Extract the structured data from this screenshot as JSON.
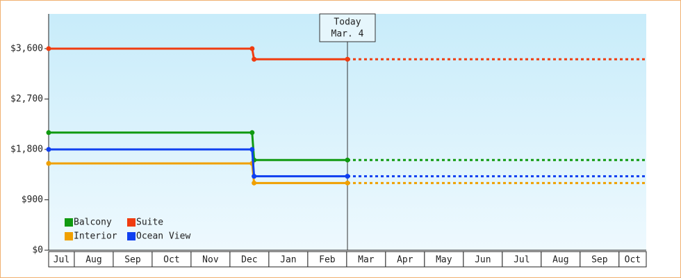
{
  "chart_data": {
    "type": "step-line",
    "categories": [
      "Jul",
      "Aug",
      "Sep",
      "Oct",
      "Nov",
      "Dec",
      "Jan",
      "Feb",
      "Mar",
      "Apr",
      "May",
      "Jun",
      "Jul",
      "Aug",
      "Sep",
      "Oct"
    ],
    "x": [
      0.34,
      5.57,
      5.62,
      8.02,
      15.7
    ],
    "xlim": [
      0.34,
      15.7
    ],
    "ylim": [
      0,
      4220
    ],
    "yticks": [
      {
        "value": 0,
        "label": "$0"
      },
      {
        "value": 900,
        "label": "$900"
      },
      {
        "value": 1800,
        "label": "$1,800"
      },
      {
        "value": 2700,
        "label": "$2,700"
      },
      {
        "value": 3600,
        "label": "$3,600"
      }
    ],
    "today": {
      "label": [
        "Today",
        "Mar. 4"
      ],
      "x": 8.02
    },
    "legend": "lower left",
    "series": [
      {
        "name": "Balcony",
        "color": "#109a10",
        "values": [
          2100,
          2100,
          1610,
          1610,
          1610
        ]
      },
      {
        "name": "Suite",
        "color": "#f03c10",
        "values": [
          3600,
          3600,
          3410,
          3410,
          3410
        ]
      },
      {
        "name": "Interior",
        "color": "#f0a000",
        "values": [
          1550,
          1550,
          1200,
          1200,
          1200
        ]
      },
      {
        "name": "Ocean View",
        "color": "#1040f0",
        "values": [
          1800,
          1800,
          1320,
          1320,
          1320
        ]
      }
    ]
  }
}
